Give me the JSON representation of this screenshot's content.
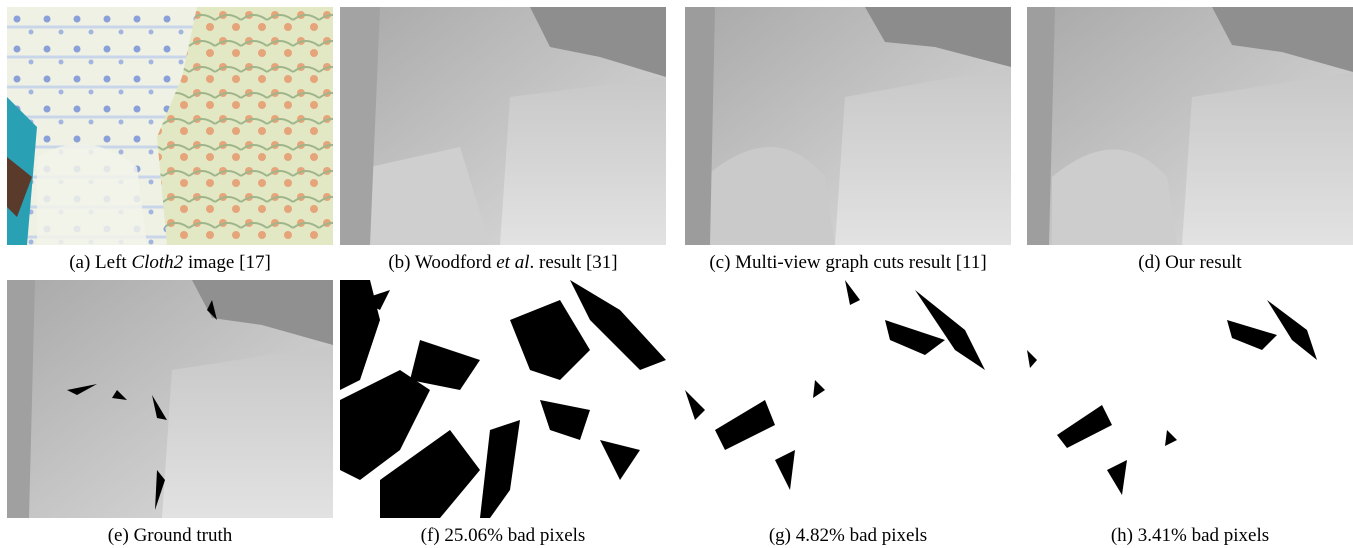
{
  "figure": {
    "panels": [
      {
        "caption": [
          {
            "text": "(a) Left ",
            "italic": false
          },
          {
            "text": "Cloth2",
            "italic": true
          },
          {
            "text": " image [17]",
            "italic": false
          }
        ]
      },
      {
        "caption": [
          {
            "text": "(b) Woodford ",
            "italic": false
          },
          {
            "text": "et al",
            "italic": true
          },
          {
            "text": ". result [31]",
            "italic": false
          }
        ]
      },
      {
        "caption": [
          {
            "text": "(c) Multi-view graph cuts result [11]",
            "italic": false
          }
        ]
      },
      {
        "caption": [
          {
            "text": "(d) Our result",
            "italic": false
          }
        ]
      },
      {
        "caption": [
          {
            "text": "(e) Ground truth",
            "italic": false
          }
        ]
      },
      {
        "caption": [
          {
            "text": "(f) 25.06% bad pixels",
            "italic": false
          }
        ]
      },
      {
        "caption": [
          {
            "text": "(g) 4.82% bad pixels",
            "italic": false
          }
        ]
      },
      {
        "caption": [
          {
            "text": "(h) 3.41% bad pixels",
            "italic": false
          }
        ]
      }
    ]
  }
}
